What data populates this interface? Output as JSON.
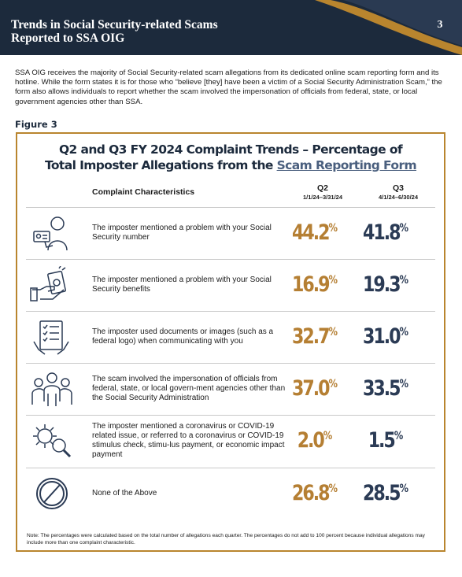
{
  "header": {
    "title_line1": "Trends in Social Security-related Scams",
    "title_line2": "Reported to SSA OIG",
    "page_number": "3",
    "bg_color": "#1c2a3c",
    "accent_color": "#b9852e"
  },
  "intro": "SSA OIG receives the majority of Social Security-related scam allegations from its dedicated online scam reporting form and its hotline. While the form states it is for those who “believe [they] have been a victim of a Social Security Administration Scam,” the form also allows individuals to report whether the scam involved the impersonation of officials from federal, state, or local government agencies other than SSA.",
  "figure_label": "Figure 3",
  "figure": {
    "title_line1": "Q2 and Q3 FY 2024 Complaint Trends – Percentage of",
    "title_line2_prefix": "Total Imposter Allegations from the ",
    "title_line2_link": "Scam Reporting Form",
    "column_header": "Complaint Characteristics",
    "q2_label": "Q2",
    "q2_dates": "1/1/24–3/31/24",
    "q3_label": "Q3",
    "q3_dates": "4/1/24–6/30/24",
    "q2_color": "#b57f33",
    "q3_color": "#2b3b55",
    "rows": [
      {
        "icon": "person-id-card-icon",
        "text": "The imposter mentioned a problem with your Social Security number",
        "q2": "44.2",
        "q3": "41.8"
      },
      {
        "icon": "hand-money-icon",
        "text": "The imposter mentioned a problem with your Social Security benefits",
        "q2": "16.9",
        "q3": "19.3"
      },
      {
        "icon": "document-hand-icon",
        "text": "The imposter used documents or images (such as a federal logo) when communicating with you",
        "q2": "32.7",
        "q3": "31.0"
      },
      {
        "icon": "group-people-icon",
        "text": "The scam involved the impersonation of officials from federal, state, or local govern-ment agencies other than the Social Security Administration",
        "q2": "37.0",
        "q3": "33.5"
      },
      {
        "icon": "virus-magnifier-icon",
        "text": "The imposter mentioned a coronavirus or COVID-19 related issue, or referred to a coronavirus or COVID-19 stimulus check, stimu-lus payment, or economic impact payment",
        "q2": "2.0",
        "q3": "1.5"
      },
      {
        "icon": "prohibited-circle-icon",
        "text": "None of the Above",
        "q2": "26.8",
        "q3": "28.5"
      }
    ],
    "percent_sign": "%",
    "note": "Note: The percentages were calculated based on the total number of allegations each quarter. The percentages do not add to 100 percent because individual allegations may include more than one complaint characteristic."
  }
}
